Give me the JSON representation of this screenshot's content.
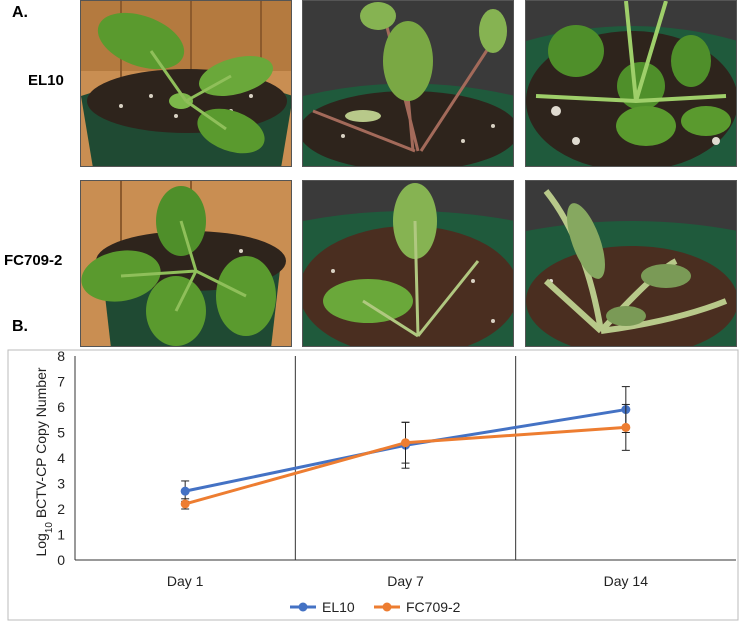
{
  "panels": {
    "a_label": "A.",
    "b_label": "B."
  },
  "rows": [
    "EL10",
    "FC709-2"
  ],
  "photo_icons": [
    [
      "sugar-beet-plant-el10-day1-photo",
      "sugar-beet-plant-el10-day7-photo",
      "sugar-beet-plant-el10-day14-photo"
    ],
    [
      "sugar-beet-plant-fc709-2-day1-photo",
      "sugar-beet-plant-fc709-2-day7-photo",
      "sugar-beet-plant-fc709-2-day14-photo"
    ]
  ],
  "colors": {
    "el10": "#4472C4",
    "fc709": "#ED7D31",
    "leaf": "#5a8f2c",
    "soil": "#2e241c",
    "pot": "#1f4a33"
  },
  "chart_data": {
    "type": "line",
    "categories": [
      "Day 1",
      "Day 7",
      "Day 14"
    ],
    "ylabel_main": "Log",
    "ylabel_sub": "10",
    "ylabel_rest": " BCTV-CP Copy Number",
    "ylim": [
      0,
      8
    ],
    "yticks": [
      0,
      1,
      2,
      3,
      4,
      5,
      6,
      7,
      8
    ],
    "grid": false,
    "legend": "bottom",
    "series": [
      {
        "name": "EL10",
        "color": "#4472C4",
        "values": [
          2.7,
          4.5,
          5.9
        ],
        "errors": [
          0.4,
          0.9,
          0.9
        ]
      },
      {
        "name": "FC709-2",
        "color": "#ED7D31",
        "values": [
          2.2,
          4.6,
          5.2
        ],
        "errors": [
          0.2,
          0.8,
          0.9
        ]
      }
    ]
  }
}
